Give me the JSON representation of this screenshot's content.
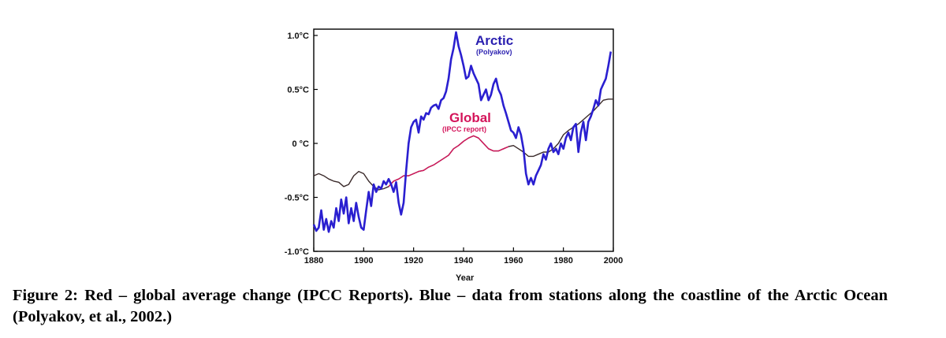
{
  "chart_data": {
    "type": "line",
    "xlabel": "Year",
    "ylabel": "",
    "xlim": [
      1880,
      2000
    ],
    "ylim": [
      -1.0,
      1.0
    ],
    "x_ticks": [
      "1880",
      "1900",
      "1920",
      "1940",
      "1960",
      "1980",
      "2000"
    ],
    "y_ticks": [
      "1.0°C",
      "0.5°C",
      "0 °C",
      "-0.5°C",
      "-1.0°C"
    ],
    "y_tick_values": [
      1.0,
      0.5,
      0,
      -0.5,
      -1.0
    ],
    "series": [
      {
        "name": "Arctic",
        "annotation": "(Polyakov)",
        "color": "#2a1fd0",
        "points": [
          [
            1880,
            -0.75
          ],
          [
            1881,
            -0.81
          ],
          [
            1882,
            -0.78
          ],
          [
            1883,
            -0.62
          ],
          [
            1884,
            -0.8
          ],
          [
            1885,
            -0.7
          ],
          [
            1886,
            -0.82
          ],
          [
            1887,
            -0.72
          ],
          [
            1888,
            -0.78
          ],
          [
            1889,
            -0.6
          ],
          [
            1890,
            -0.72
          ],
          [
            1891,
            -0.52
          ],
          [
            1892,
            -0.65
          ],
          [
            1893,
            -0.5
          ],
          [
            1894,
            -0.74
          ],
          [
            1895,
            -0.6
          ],
          [
            1896,
            -0.72
          ],
          [
            1897,
            -0.55
          ],
          [
            1898,
            -0.68
          ],
          [
            1899,
            -0.78
          ],
          [
            1900,
            -0.8
          ],
          [
            1901,
            -0.62
          ],
          [
            1902,
            -0.45
          ],
          [
            1903,
            -0.58
          ],
          [
            1904,
            -0.38
          ],
          [
            1905,
            -0.45
          ],
          [
            1906,
            -0.4
          ],
          [
            1907,
            -0.42
          ],
          [
            1908,
            -0.35
          ],
          [
            1909,
            -0.38
          ],
          [
            1910,
            -0.33
          ],
          [
            1911,
            -0.38
          ],
          [
            1912,
            -0.45
          ],
          [
            1913,
            -0.36
          ],
          [
            1914,
            -0.55
          ],
          [
            1915,
            -0.66
          ],
          [
            1916,
            -0.55
          ],
          [
            1917,
            -0.25
          ],
          [
            1918,
            0.0
          ],
          [
            1919,
            0.15
          ],
          [
            1920,
            0.2
          ],
          [
            1921,
            0.22
          ],
          [
            1922,
            0.1
          ],
          [
            1923,
            0.25
          ],
          [
            1924,
            0.22
          ],
          [
            1925,
            0.28
          ],
          [
            1926,
            0.27
          ],
          [
            1927,
            0.33
          ],
          [
            1928,
            0.35
          ],
          [
            1929,
            0.36
          ],
          [
            1930,
            0.32
          ],
          [
            1931,
            0.4
          ],
          [
            1932,
            0.42
          ],
          [
            1933,
            0.48
          ],
          [
            1934,
            0.6
          ],
          [
            1935,
            0.78
          ],
          [
            1936,
            0.88
          ],
          [
            1937,
            1.03
          ],
          [
            1938,
            0.9
          ],
          [
            1939,
            0.82
          ],
          [
            1940,
            0.72
          ],
          [
            1941,
            0.6
          ],
          [
            1942,
            0.62
          ],
          [
            1943,
            0.72
          ],
          [
            1944,
            0.65
          ],
          [
            1945,
            0.6
          ],
          [
            1946,
            0.55
          ],
          [
            1947,
            0.4
          ],
          [
            1948,
            0.45
          ],
          [
            1949,
            0.5
          ],
          [
            1950,
            0.4
          ],
          [
            1951,
            0.45
          ],
          [
            1952,
            0.55
          ],
          [
            1953,
            0.6
          ],
          [
            1954,
            0.5
          ],
          [
            1955,
            0.45
          ],
          [
            1956,
            0.35
          ],
          [
            1957,
            0.28
          ],
          [
            1958,
            0.2
          ],
          [
            1959,
            0.12
          ],
          [
            1960,
            0.1
          ],
          [
            1961,
            0.05
          ],
          [
            1962,
            0.15
          ],
          [
            1963,
            0.08
          ],
          [
            1964,
            -0.05
          ],
          [
            1965,
            -0.28
          ],
          [
            1966,
            -0.38
          ],
          [
            1967,
            -0.32
          ],
          [
            1968,
            -0.38
          ],
          [
            1969,
            -0.3
          ],
          [
            1970,
            -0.25
          ],
          [
            1971,
            -0.2
          ],
          [
            1972,
            -0.1
          ],
          [
            1973,
            -0.15
          ],
          [
            1974,
            -0.05
          ],
          [
            1975,
            0.0
          ],
          [
            1976,
            -0.08
          ],
          [
            1977,
            -0.05
          ],
          [
            1978,
            -0.1
          ],
          [
            1979,
            0.0
          ],
          [
            1980,
            -0.05
          ],
          [
            1981,
            0.05
          ],
          [
            1982,
            0.1
          ],
          [
            1983,
            0.03
          ],
          [
            1984,
            0.15
          ],
          [
            1985,
            0.18
          ],
          [
            1986,
            -0.08
          ],
          [
            1987,
            0.1
          ],
          [
            1988,
            0.2
          ],
          [
            1989,
            0.03
          ],
          [
            1990,
            0.2
          ],
          [
            1991,
            0.25
          ],
          [
            1992,
            0.32
          ],
          [
            1993,
            0.4
          ],
          [
            1994,
            0.35
          ],
          [
            1995,
            0.5
          ],
          [
            1996,
            0.55
          ],
          [
            1997,
            0.6
          ],
          [
            1998,
            0.72
          ],
          [
            1999,
            0.85
          ]
        ]
      },
      {
        "name": "Global",
        "annotation": "(IPCC report)",
        "color": "#d4145a",
        "points": [
          [
            1880,
            -0.3
          ],
          [
            1882,
            -0.28
          ],
          [
            1884,
            -0.3
          ],
          [
            1886,
            -0.33
          ],
          [
            1888,
            -0.35
          ],
          [
            1890,
            -0.36
          ],
          [
            1892,
            -0.4
          ],
          [
            1894,
            -0.38
          ],
          [
            1896,
            -0.3
          ],
          [
            1898,
            -0.26
          ],
          [
            1900,
            -0.28
          ],
          [
            1902,
            -0.35
          ],
          [
            1904,
            -0.4
          ],
          [
            1906,
            -0.43
          ],
          [
            1908,
            -0.42
          ],
          [
            1910,
            -0.4
          ],
          [
            1912,
            -0.35
          ],
          [
            1914,
            -0.33
          ],
          [
            1916,
            -0.3
          ],
          [
            1918,
            -0.3
          ],
          [
            1920,
            -0.28
          ],
          [
            1922,
            -0.26
          ],
          [
            1924,
            -0.25
          ],
          [
            1926,
            -0.22
          ],
          [
            1928,
            -0.2
          ],
          [
            1930,
            -0.17
          ],
          [
            1932,
            -0.14
          ],
          [
            1934,
            -0.11
          ],
          [
            1936,
            -0.05
          ],
          [
            1938,
            -0.02
          ],
          [
            1940,
            0.02
          ],
          [
            1942,
            0.05
          ],
          [
            1944,
            0.07
          ],
          [
            1946,
            0.05
          ],
          [
            1948,
            0.0
          ],
          [
            1950,
            -0.05
          ],
          [
            1952,
            -0.07
          ],
          [
            1954,
            -0.07
          ],
          [
            1956,
            -0.05
          ],
          [
            1958,
            -0.03
          ],
          [
            1960,
            -0.02
          ],
          [
            1962,
            -0.05
          ],
          [
            1964,
            -0.08
          ],
          [
            1966,
            -0.12
          ],
          [
            1968,
            -0.12
          ],
          [
            1970,
            -0.1
          ],
          [
            1972,
            -0.08
          ],
          [
            1974,
            -0.08
          ],
          [
            1976,
            -0.05
          ],
          [
            1978,
            0.0
          ],
          [
            1980,
            0.08
          ],
          [
            1982,
            0.12
          ],
          [
            1984,
            0.15
          ],
          [
            1986,
            0.18
          ],
          [
            1988,
            0.22
          ],
          [
            1990,
            0.26
          ],
          [
            1992,
            0.3
          ],
          [
            1994,
            0.35
          ],
          [
            1996,
            0.4
          ],
          [
            1998,
            0.41
          ],
          [
            2000,
            0.41
          ]
        ]
      }
    ],
    "annotations": [
      {
        "series": "Arctic",
        "title": "Arctic",
        "subtitle": "(Polyakov)"
      },
      {
        "series": "Global",
        "title": "Global",
        "subtitle": "(IPCC report)"
      }
    ]
  },
  "caption": "Figure 2: Red – global average change (IPCC Reports). Blue – data from stations along the coastline of the Arctic Ocean (Polyakov, et al., 2002.)"
}
